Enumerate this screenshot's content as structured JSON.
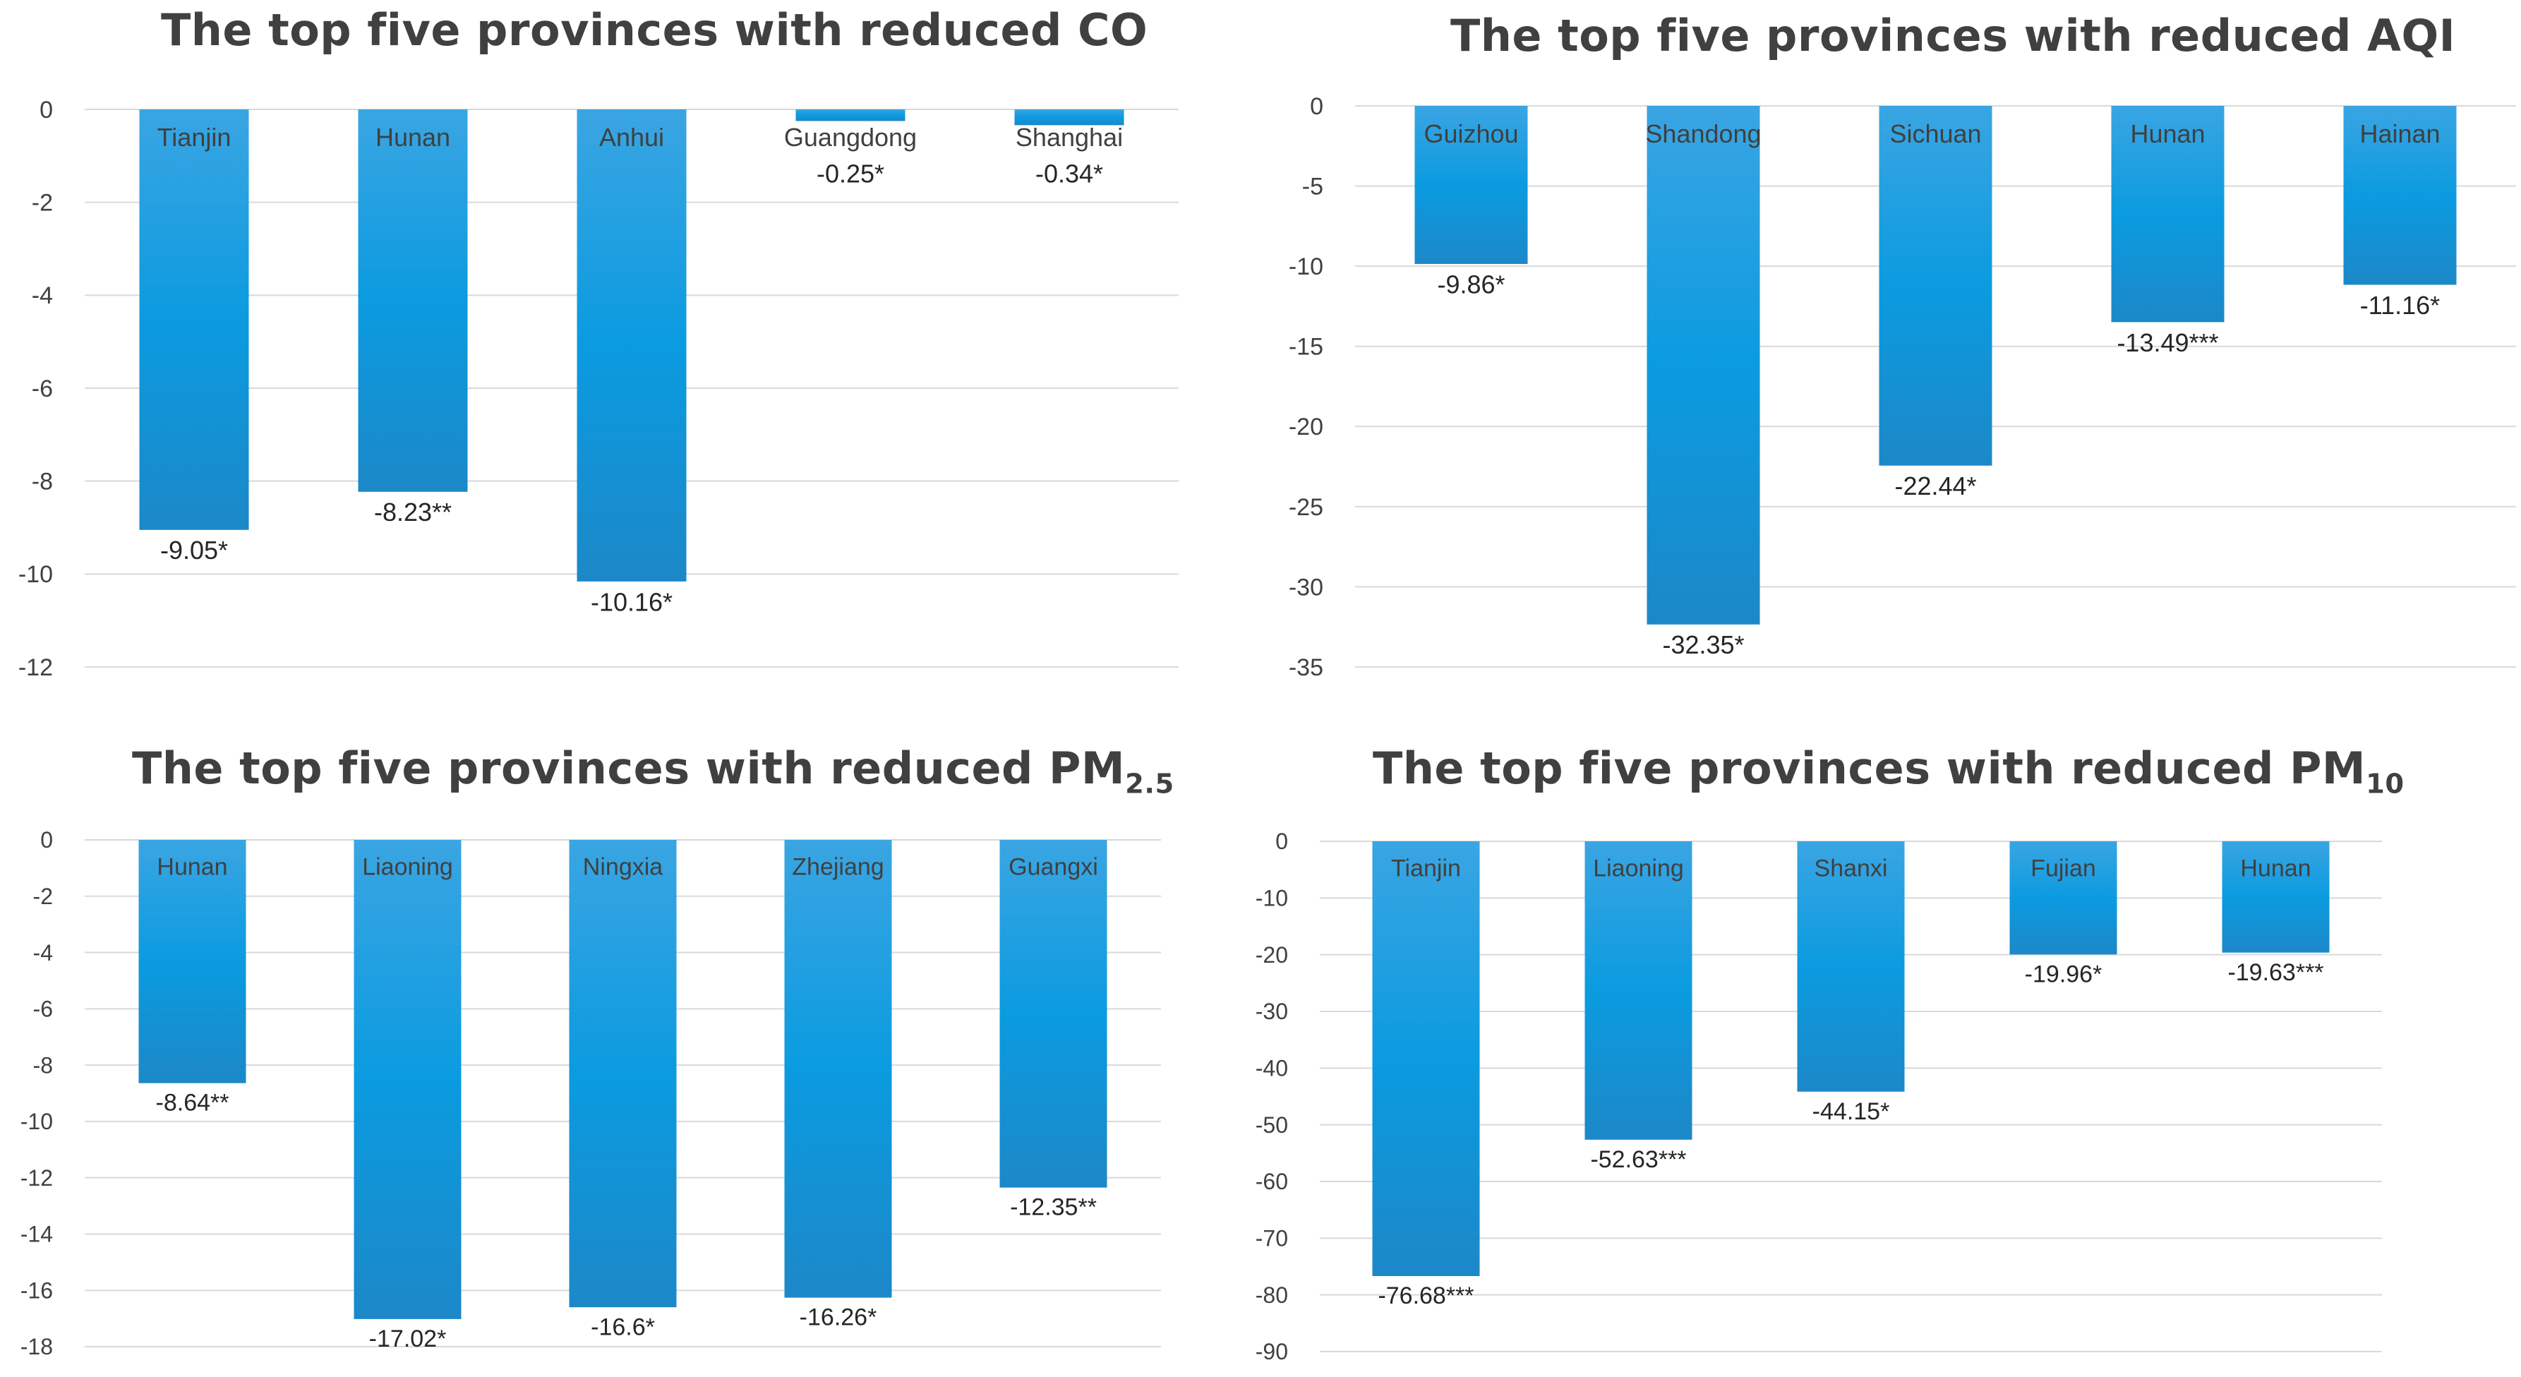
{
  "chart_data": [
    {
      "type": "bar",
      "title": "The top five provinces with reduced CO",
      "title_main": "The top five provinces with reduced CO",
      "title_sub": "",
      "categories": [
        "Tianjin",
        "Hunan",
        "Anhui",
        "Guangdong",
        "Shanghai"
      ],
      "values": [
        -9.05,
        -8.23,
        -10.16,
        -0.25,
        -0.34
      ],
      "value_labels": [
        "-9.05*",
        "-8.23**",
        "-10.16*",
        "-0.25*",
        "-0.34*"
      ],
      "ylim": [
        -12,
        0
      ],
      "yticks": [
        0,
        -2,
        -4,
        -6,
        -8,
        -10,
        -12
      ],
      "xlabel": "",
      "ylabel": "",
      "grid": true,
      "bar_color": "#1f97d6"
    },
    {
      "type": "bar",
      "title": "The top five provinces with reduced AQI",
      "title_main": "The top five provinces with reduced AQI",
      "title_sub": "",
      "categories": [
        "Guizhou",
        "Shandong",
        "Sichuan",
        "Hunan",
        "Hainan"
      ],
      "values": [
        -9.86,
        -32.35,
        -22.44,
        -13.49,
        -11.16
      ],
      "value_labels": [
        "-9.86*",
        "-32.35*",
        "-22.44*",
        "-13.49***",
        "-11.16*"
      ],
      "ylim": [
        -35,
        0
      ],
      "yticks": [
        0,
        -5,
        -10,
        -15,
        -20,
        -25,
        -30,
        -35
      ],
      "xlabel": "",
      "ylabel": "",
      "grid": true,
      "bar_color": "#1f97d6"
    },
    {
      "type": "bar",
      "title": "The top five provinces with reduced PM2.5",
      "title_main": "The top five provinces with reduced PM",
      "title_sub": "2.5",
      "categories": [
        "Hunan",
        "Liaoning",
        "Ningxia",
        "Zhejiang",
        "Guangxi"
      ],
      "values": [
        -8.64,
        -17.02,
        -16.6,
        -16.26,
        -12.35
      ],
      "value_labels": [
        "-8.64**",
        "-17.02*",
        "-16.6*",
        "-16.26*",
        "-12.35**"
      ],
      "ylim": [
        -18,
        0
      ],
      "yticks": [
        0,
        -2,
        -4,
        -6,
        -8,
        -10,
        -12,
        -14,
        -16,
        -18
      ],
      "xlabel": "",
      "ylabel": "",
      "grid": true,
      "bar_color": "#1f97d6"
    },
    {
      "type": "bar",
      "title": "The top five provinces with reduced PM10",
      "title_main": "The top five provinces with reduced PM",
      "title_sub": "10",
      "categories": [
        "Tianjin",
        "Liaoning",
        "Shanxi",
        "Fujian",
        "Hunan"
      ],
      "values": [
        -76.68,
        -52.63,
        -44.15,
        -19.96,
        -19.63
      ],
      "value_labels": [
        "-76.68***",
        "-52.63***",
        "-44.15*",
        "-19.96*",
        "-19.63***"
      ],
      "ylim": [
        -90,
        0
      ],
      "yticks": [
        0,
        -10,
        -20,
        -30,
        -40,
        -50,
        -60,
        -70,
        -80,
        -90
      ],
      "xlabel": "",
      "ylabel": "",
      "grid": true,
      "bar_color": "#1f97d6"
    }
  ]
}
